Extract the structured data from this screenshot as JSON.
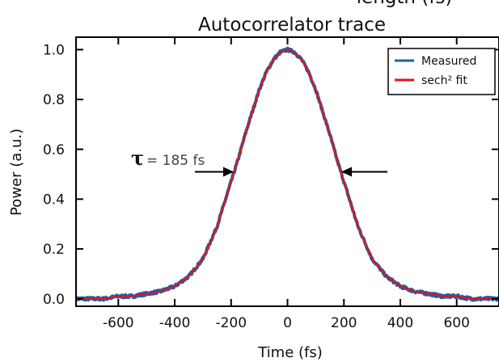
{
  "chart_data": {
    "type": "line",
    "title_partial": "length (fs)",
    "title": "Autocorrelator trace",
    "xlabel": "Time (fs)",
    "ylabel": "Power (a.u.)",
    "xlim": [
      -750,
      750
    ],
    "ylim": [
      -0.03,
      1.05
    ],
    "xticks": [
      -600,
      -400,
      -200,
      0,
      200,
      400,
      600
    ],
    "xtick_labels": [
      "-600",
      "-400",
      "-200",
      "0",
      "200",
      "400",
      "600"
    ],
    "yticks": [
      0.0,
      0.2,
      0.4,
      0.6,
      0.8,
      1.0
    ],
    "ytick_labels": [
      "0.0",
      "0.2",
      "0.4",
      "0.6",
      "0.8",
      "1.0"
    ],
    "grid": false,
    "legend_position": "top-right",
    "series": [
      {
        "name": "Measured",
        "color": "#1f5fa8",
        "style": "noisy",
        "x": [
          -750,
          -700,
          -650,
          -600,
          -550,
          -500,
          -450,
          -400,
          -350,
          -300,
          -250,
          -200,
          -175,
          -150,
          -125,
          -100,
          -75,
          -50,
          -25,
          0,
          25,
          50,
          75,
          100,
          125,
          150,
          175,
          200,
          250,
          300,
          350,
          400,
          450,
          500,
          550,
          600,
          650,
          700,
          750
        ],
        "y": [
          0.0,
          0.0,
          0.0,
          0.01,
          0.01,
          0.02,
          0.03,
          0.05,
          0.09,
          0.16,
          0.29,
          0.47,
          0.56,
          0.66,
          0.75,
          0.84,
          0.91,
          0.96,
          0.99,
          1.0,
          0.99,
          0.96,
          0.91,
          0.84,
          0.75,
          0.66,
          0.56,
          0.47,
          0.29,
          0.16,
          0.09,
          0.05,
          0.03,
          0.02,
          0.01,
          0.01,
          0.0,
          0.0,
          0.0
        ]
      },
      {
        "name": "sech² fit",
        "color": "#e0151b",
        "style": "smooth",
        "x": [
          -750,
          -700,
          -650,
          -600,
          -550,
          -500,
          -450,
          -400,
          -350,
          -300,
          -250,
          -200,
          -175,
          -150,
          -125,
          -100,
          -75,
          -50,
          -25,
          0,
          25,
          50,
          75,
          100,
          125,
          150,
          175,
          200,
          250,
          300,
          350,
          400,
          450,
          500,
          550,
          600,
          650,
          700,
          750
        ],
        "y": [
          0.0,
          0.0,
          0.0,
          0.01,
          0.01,
          0.02,
          0.03,
          0.05,
          0.09,
          0.16,
          0.29,
          0.47,
          0.56,
          0.66,
          0.75,
          0.84,
          0.91,
          0.96,
          0.99,
          1.0,
          0.99,
          0.96,
          0.91,
          0.84,
          0.75,
          0.66,
          0.56,
          0.47,
          0.29,
          0.16,
          0.09,
          0.05,
          0.03,
          0.02,
          0.01,
          0.01,
          0.0,
          0.0,
          0.0
        ]
      }
    ],
    "annotation": {
      "symbol": "τ",
      "text": "= 185 fs",
      "left_arrow_x": -185,
      "right_arrow_x": 185,
      "arrow_y": 0.5
    }
  }
}
